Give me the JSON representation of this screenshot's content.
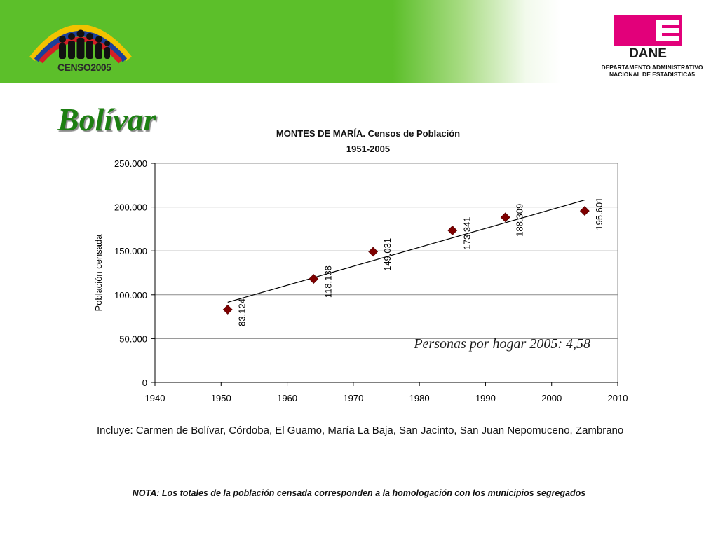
{
  "header": {
    "censo_logo_text": "CENSO2005",
    "dane_logo_text": "DANE",
    "dane_subtitle_line1": "DEPARTAMENTO ADMINISTRATIVO",
    "dane_subtitle_line2": "NACIONAL DE ESTADISTICA5",
    "brand_green": "#5cbf2a",
    "dane_pink": "#e2007a"
  },
  "slide": {
    "title": "Bolívar",
    "title_color": "#1d7f12",
    "includes_text": "Incluye: Carmen de Bolívar, Córdoba, El Guamo, María La Baja, San Jacinto, San Juan Nepomuceno, Zambrano",
    "note_text": "NOTA: Los totales de la población censada corresponden a la homologación con los municipios segregados"
  },
  "chart_data": {
    "type": "scatter",
    "title_line1": "MONTES DE MARÍA. Censos de Población",
    "title_line2": "1951-2005",
    "xlabel": "",
    "ylabel": "Población censada",
    "xlim": [
      1940,
      2010
    ],
    "ylim": [
      0,
      250000
    ],
    "x_ticks": [
      "1940",
      "1950",
      "1960",
      "1970",
      "1980",
      "1990",
      "2000",
      "2010"
    ],
    "y_ticks": [
      "0",
      "50.000",
      "100.000",
      "150.000",
      "200.000",
      "250.000"
    ],
    "grid": true,
    "marker_color": "#7f0000",
    "series": [
      {
        "points": [
          {
            "x": 1951,
            "y": 83124,
            "label": "83.124"
          },
          {
            "x": 1964,
            "y": 118138,
            "label": "118.138"
          },
          {
            "x": 1973,
            "y": 149031,
            "label": "149.031"
          },
          {
            "x": 1985,
            "y": 173341,
            "label": "173.341"
          },
          {
            "x": 1993,
            "y": 188309,
            "label": "188.309"
          },
          {
            "x": 2005,
            "y": 195601,
            "label": "195.601"
          }
        ]
      }
    ],
    "trendline": {
      "type": "linear",
      "x": [
        1951,
        2005
      ],
      "y": [
        91500,
        208000
      ]
    },
    "annotation": "Personas por hogar 2005: 4,58"
  }
}
